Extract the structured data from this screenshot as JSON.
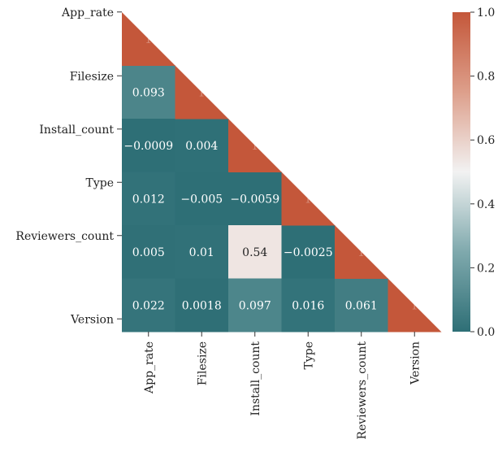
{
  "chart_data": {
    "type": "heatmap",
    "title": "",
    "xlabel": "",
    "ylabel": "",
    "variables": [
      "App_rate",
      "Filesize",
      "Install_count",
      "Type",
      "Reviewers_count",
      "Version"
    ],
    "mask": "upper-triangle-including-diagonal",
    "matrix": [
      [
        1,
        null,
        null,
        null,
        null,
        null
      ],
      [
        0.093,
        1,
        null,
        null,
        null,
        null
      ],
      [
        -0.0009,
        0.004,
        1,
        null,
        null,
        null
      ],
      [
        0.012,
        -0.005,
        -0.0059,
        1,
        null,
        null
      ],
      [
        0.005,
        0.01,
        0.54,
        -0.0025,
        1,
        null
      ],
      [
        0.022,
        0.0018,
        0.097,
        0.016,
        0.061,
        1
      ]
    ],
    "cell_labels": [
      [
        "1",
        "",
        "",
        "",
        "",
        ""
      ],
      [
        "0.093",
        "1",
        "",
        "",
        "",
        ""
      ],
      [
        "−0.0009",
        "0.004",
        "1",
        "",
        "",
        ""
      ],
      [
        "0.012",
        "−0.005",
        "−0.0059",
        "1",
        "",
        ""
      ],
      [
        "0.005",
        "0.01",
        "0.54",
        "−0.0025",
        "1",
        ""
      ],
      [
        "0.022",
        "0.0018",
        "0.097",
        "0.016",
        "0.061",
        "1"
      ]
    ],
    "colorbar": {
      "range": [
        0,
        1
      ],
      "ticks": [
        0.0,
        0.2,
        0.4,
        0.6,
        0.8,
        1.0
      ],
      "tick_labels": [
        "0.0",
        "0.2",
        "0.4",
        "0.6",
        "0.8",
        "1.0"
      ],
      "colors": {
        "low": "#2e6f76",
        "mid": "#f2f2f2",
        "high": "#c4573a"
      }
    }
  }
}
